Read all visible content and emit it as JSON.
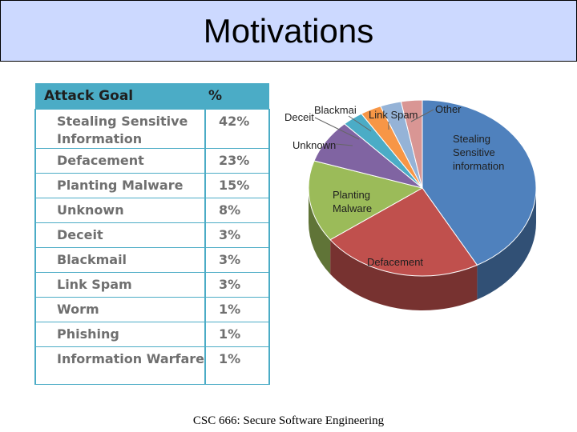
{
  "title": "Motivations",
  "footer": "CSC 666: Secure Software Engineering",
  "table": {
    "header": {
      "goal": "Attack Goal",
      "pct": "%"
    },
    "rows": [
      {
        "goal": "Stealing Sensitive Information",
        "pct": "42%"
      },
      {
        "goal": "Defacement",
        "pct": "23%"
      },
      {
        "goal": "Planting Malware",
        "pct": "15%"
      },
      {
        "goal": "Unknown",
        "pct": "8%"
      },
      {
        "goal": "Deceit",
        "pct": "3%"
      },
      {
        "goal": "Blackmail",
        "pct": "3%"
      },
      {
        "goal": "Link Spam",
        "pct": "3%"
      },
      {
        "goal": "Worm",
        "pct": "1%"
      },
      {
        "goal": "Phishing",
        "pct": "1%"
      },
      {
        "goal": "Information Warfare",
        "pct": "1%"
      }
    ]
  },
  "chart_data": {
    "type": "pie",
    "slices": [
      {
        "label": "Stealing Sensitive information",
        "value": 42,
        "color": "#4f81bd"
      },
      {
        "label": "Defacement",
        "value": 23,
        "color": "#c0504d"
      },
      {
        "label": "Planting Malware",
        "value": 15,
        "color": "#9bbb59"
      },
      {
        "label": "Unknown",
        "value": 8,
        "color": "#8064a2"
      },
      {
        "label": "",
        "value": 3,
        "color": "#4bacc6"
      },
      {
        "label": "",
        "value": 3,
        "color": "#f79646"
      },
      {
        "label": "",
        "value": 3,
        "color": "#95b3d7"
      },
      {
        "label": "",
        "value": 3,
        "color": "#d99694"
      }
    ],
    "callouts": [
      {
        "label": "Deceit"
      },
      {
        "label": "Blackmai"
      },
      {
        "label": "Link Spam"
      },
      {
        "label": "Other"
      }
    ]
  }
}
